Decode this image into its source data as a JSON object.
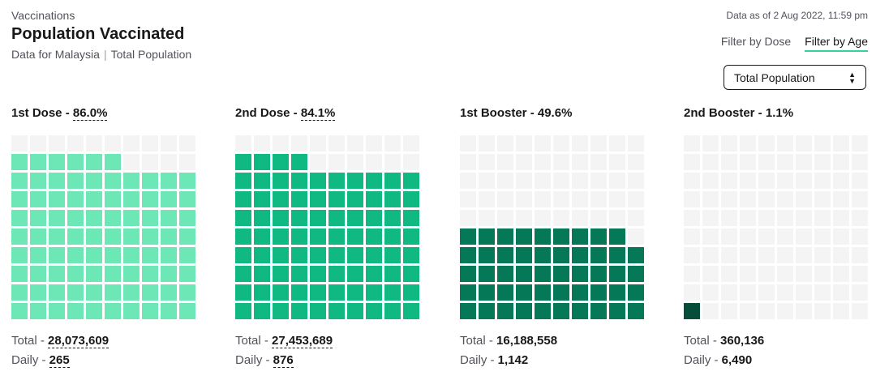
{
  "header": {
    "eyebrow": "Vaccinations",
    "title": "Population Vaccinated",
    "subtitle_left": "Data for Malaysia",
    "subtitle_right": "Total Population",
    "as_of": "Data as of 2 Aug 2022, 11:59 pm"
  },
  "filters": {
    "dose_label": "Filter by Dose",
    "age_label": "Filter by Age",
    "active": "age"
  },
  "select": {
    "value": "Total Population"
  },
  "labels": {
    "total_prefix": "Total - ",
    "daily_prefix": "Daily - "
  },
  "colors": {
    "empty": "#f4f4f5",
    "dose1": "#6ee7b7",
    "dose2": "#10b981",
    "booster1": "#047857",
    "booster2": "#064e3b"
  },
  "panels": [
    {
      "name": "1st Dose",
      "sep": " - ",
      "pct": "86.0%",
      "filled": 86,
      "color": "#6ee7b7",
      "total": "28,073,609",
      "daily": "265"
    },
    {
      "name": "2nd Dose",
      "sep": " - ",
      "pct": "84.1%",
      "filled": 84,
      "color": "#10b981",
      "total": "27,453,689",
      "daily": "876"
    },
    {
      "name": "1st Booster",
      "sep": " - ",
      "pct": "49.6%",
      "filled": 49,
      "color": "#047857",
      "total": "16,188,558",
      "daily": "1,142"
    },
    {
      "name": "2nd Booster",
      "sep": " - ",
      "pct": "1.1%",
      "filled": 1,
      "color": "#064e3b",
      "total": "360,136",
      "daily": "6,490"
    }
  ]
}
